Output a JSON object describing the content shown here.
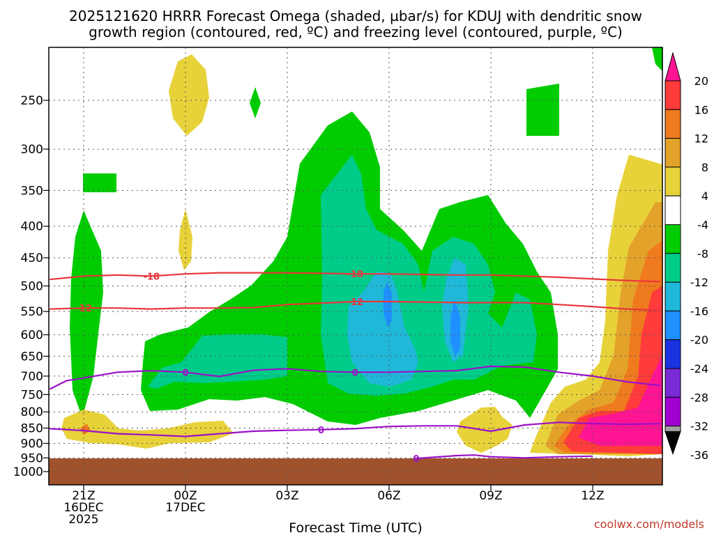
{
  "title_lines": [
    "2025121620 HRRR Forecast Omega (shaded, µbar/s) for KDUJ with dendritic snow",
    "growth region (contoured, red, ºC) and freezing level (contoured, purple, ºC)"
  ],
  "xlabel": "Forecast Time (UTC)",
  "credit": "coolwx.com/models",
  "chart_data": {
    "type": "heatmap",
    "title": "2025121620 HRRR Forecast Omega (shaded, µbar/s) for KDUJ with dendritic snow growth region (contoured, red, ºC) and freezing level (contoured, purple, ºC)",
    "xlabel": "Forecast Time (UTC)",
    "ylabel": "",
    "x_range_hours": [
      -1,
      17
    ],
    "y_range_hpa": [
      200,
      1050
    ],
    "x_ticks": [
      {
        "h": 0,
        "lines": [
          "21Z",
          "16DEC",
          "2025"
        ]
      },
      {
        "h": 3,
        "lines": [
          "00Z",
          "17DEC"
        ]
      },
      {
        "h": 6,
        "lines": [
          "03Z"
        ]
      },
      {
        "h": 9,
        "lines": [
          "06Z"
        ]
      },
      {
        "h": 12,
        "lines": [
          "09Z"
        ]
      },
      {
        "h": 15,
        "lines": [
          "12Z"
        ]
      }
    ],
    "y_ticks": [
      250,
      300,
      350,
      400,
      450,
      500,
      550,
      600,
      650,
      700,
      750,
      800,
      850,
      900,
      950,
      1000
    ],
    "colorbar": {
      "labels": [
        20,
        16,
        12,
        8,
        4,
        -4,
        -8,
        -12,
        -16,
        -20,
        -24,
        -28,
        -32,
        -36
      ],
      "bins": [
        {
          "color": "#ff1493"
        },
        {
          "color": "#ff3b3b"
        },
        {
          "color": "#f07a1e"
        },
        {
          "color": "#e3a32a"
        },
        {
          "color": "#e8d23a"
        },
        {
          "color": "#ffffff"
        },
        {
          "color": "#00cc00"
        },
        {
          "color": "#00cc8a"
        },
        {
          "color": "#20b8d8"
        },
        {
          "color": "#1e90ff"
        },
        {
          "color": "#1a32e0"
        },
        {
          "color": "#7a2ad6"
        },
        {
          "color": "#a000d0"
        },
        {
          "color": "#a0a0a0"
        }
      ]
    },
    "contours": {
      "dendritic": [
        {
          "label": "-18",
          "color": "#e8353b",
          "points": [
            [
              -1,
              488
            ],
            [
              0,
              482
            ],
            [
              1,
              480
            ],
            [
              2,
              482
            ],
            [
              3,
              478
            ],
            [
              4,
              476
            ],
            [
              5,
              476
            ],
            [
              6,
              476
            ],
            [
              7,
              477
            ],
            [
              8,
              478
            ],
            [
              9,
              478
            ],
            [
              10,
              479
            ],
            [
              11,
              480
            ],
            [
              12,
              480
            ],
            [
              13,
              482
            ],
            [
              14,
              484
            ],
            [
              15,
              487
            ],
            [
              16,
              490
            ],
            [
              17,
              492
            ]
          ]
        },
        {
          "label": "-12",
          "color": "#e8353b",
          "points": [
            [
              -1,
              545
            ],
            [
              0,
              543
            ],
            [
              1,
              543
            ],
            [
              2,
              545
            ],
            [
              3,
              543
            ],
            [
              4,
              543
            ],
            [
              5,
              542
            ],
            [
              6,
              536
            ],
            [
              7,
              533
            ],
            [
              8,
              530
            ],
            [
              9,
              530
            ],
            [
              10,
              531
            ],
            [
              11,
              532
            ],
            [
              12,
              532
            ],
            [
              13,
              532
            ],
            [
              14,
              536
            ],
            [
              15,
              540
            ],
            [
              16,
              545
            ],
            [
              17,
              548
            ]
          ]
        }
      ],
      "freezing_level": [
        {
          "label": "0",
          "color": "#9b10c8",
          "points": [
            [
              -1,
              735
            ],
            [
              -0.5,
              712
            ],
            [
              0,
              705
            ],
            [
              1,
              690
            ],
            [
              2,
              686
            ],
            [
              3,
              690
            ],
            [
              4,
              701
            ],
            [
              5,
              685
            ],
            [
              6,
              681
            ],
            [
              7,
              688
            ],
            [
              8,
              690
            ],
            [
              9,
              690
            ],
            [
              10,
              688
            ],
            [
              11,
              686
            ],
            [
              12,
              675
            ],
            [
              13,
              677
            ],
            [
              14,
              690
            ],
            [
              15,
              700
            ],
            [
              16,
              715
            ],
            [
              17,
              725
            ]
          ]
        },
        {
          "label": "0",
          "color": "#9b10c8",
          "points": [
            [
              -1,
              852
            ],
            [
              0,
              858
            ],
            [
              1,
              868
            ],
            [
              2,
              872
            ],
            [
              3,
              877
            ],
            [
              4,
              868
            ],
            [
              5,
              860
            ],
            [
              6,
              857
            ],
            [
              7,
              855
            ],
            [
              8,
              852
            ],
            [
              9,
              845
            ],
            [
              10,
              843
            ],
            [
              11,
              843
            ],
            [
              12,
              860
            ],
            [
              13,
              840
            ],
            [
              14,
              832
            ],
            [
              15,
              836
            ],
            [
              16,
              838
            ],
            [
              17,
              836
            ]
          ]
        },
        {
          "label": "0",
          "color": "#9b10c8",
          "points": [
            [
              9.8,
              952
            ],
            [
              11,
              942
            ],
            [
              11.5,
              940
            ],
            [
              12,
              946
            ],
            [
              13,
              950
            ],
            [
              14,
              946
            ],
            [
              15,
              944
            ]
          ]
        }
      ]
    }
  }
}
